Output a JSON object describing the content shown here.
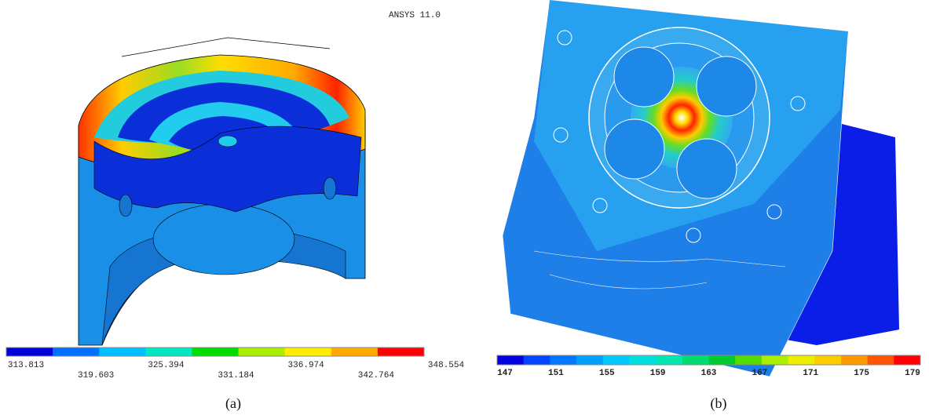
{
  "panels": [
    {
      "header": "ANSYS 11.0",
      "caption": "(a)",
      "scale": [
        "313.813",
        "319.603",
        "325.394",
        "331.184",
        "336.974",
        "342.764",
        "348.554"
      ]
    },
    {
      "caption": "(b)",
      "scale": [
        "147",
        "151",
        "155",
        "159",
        "163",
        "167",
        "171",
        "175",
        "179"
      ]
    }
  ]
}
